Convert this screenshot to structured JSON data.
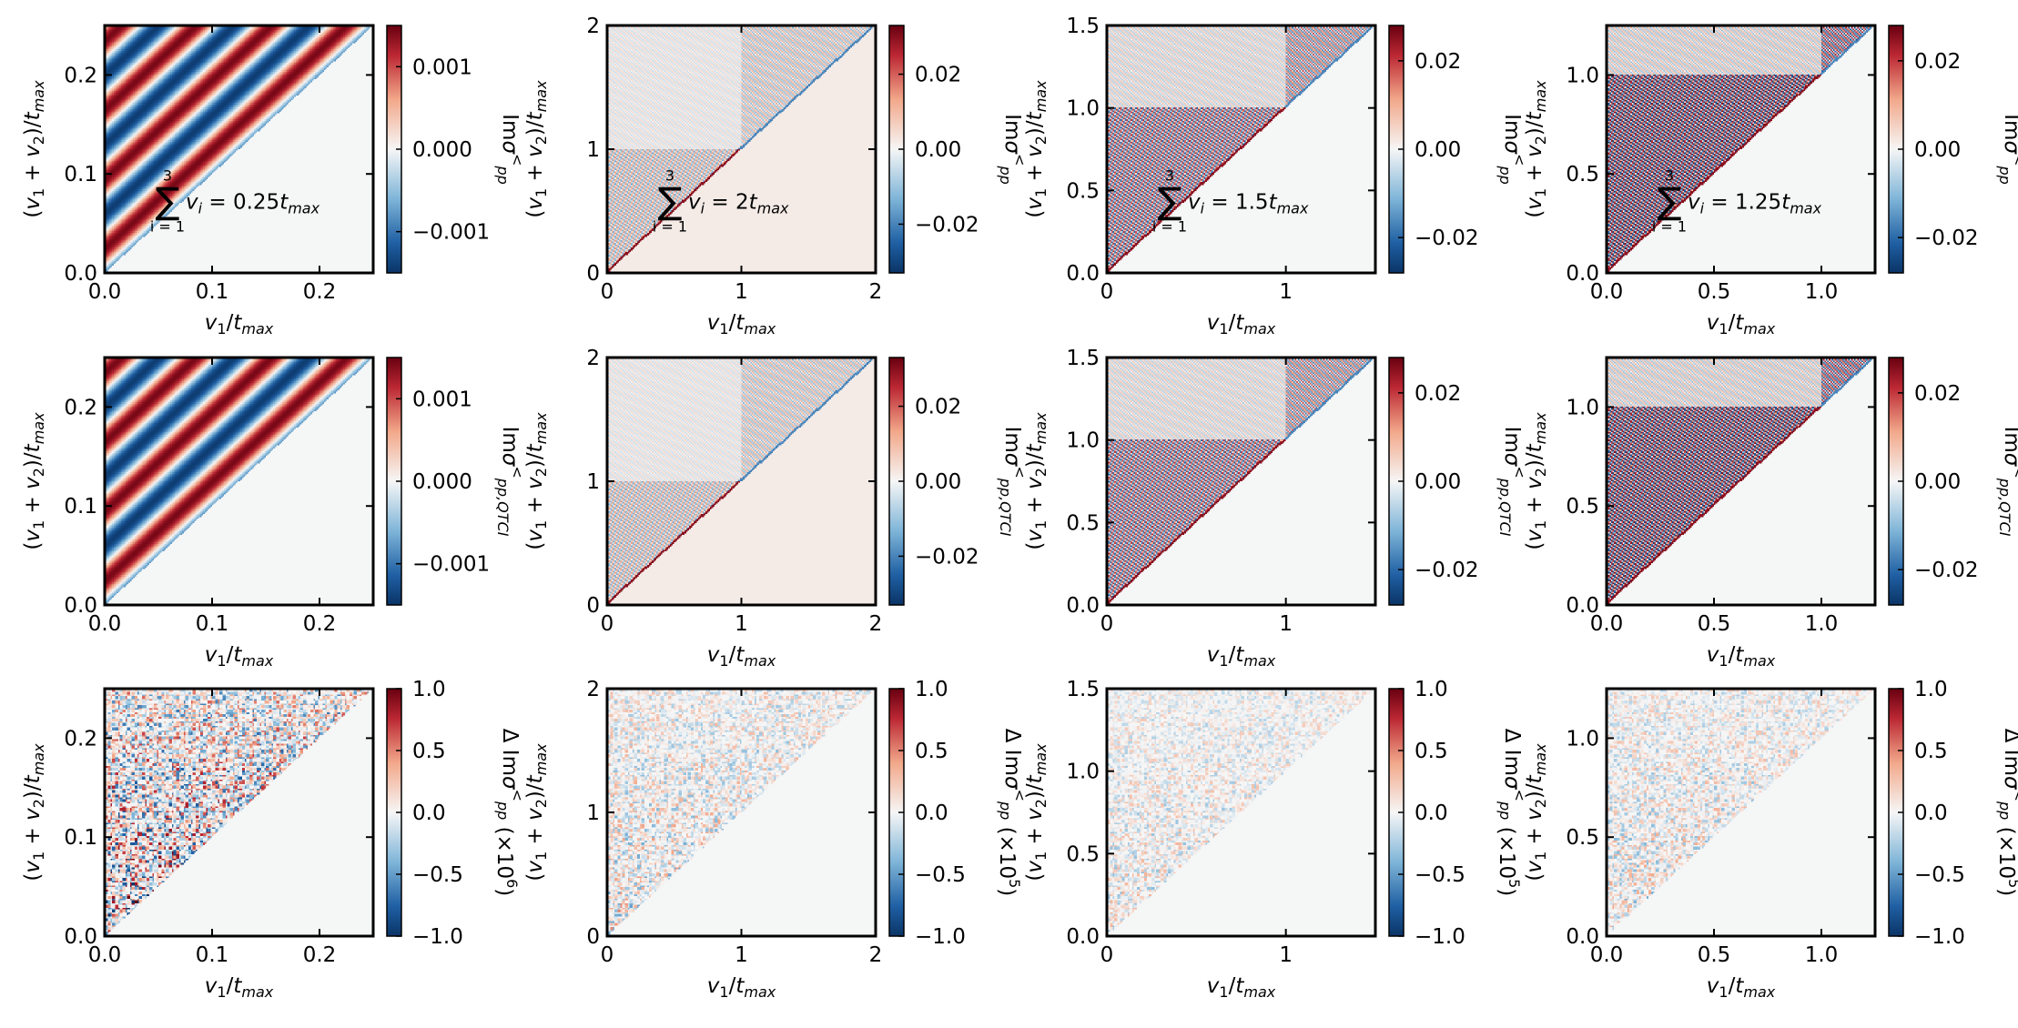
{
  "figure": {
    "layout": "3 rows x 4 columns of heatmaps, each with a vertical red-white-blue colorbar",
    "colormap": {
      "low": "#0a3d78",
      "mid": "#f5f6f6",
      "high": "#6b0010"
    },
    "background_color": "#f5f6f6"
  },
  "chart_data": [
    {
      "type": "heatmap",
      "row": 0,
      "col": 0,
      "xlabel": "v_1/t_max",
      "ylabel": "(v_1 + v_2)/t_max",
      "xlim": [
        0,
        0.25
      ],
      "ylim": [
        0,
        0.25
      ],
      "xticks": [
        0.0,
        0.1,
        0.2
      ],
      "xtick_labels": [
        "0.0",
        "0.1",
        "0.2"
      ],
      "yticks": [
        0.0,
        0.1,
        0.2
      ],
      "ytick_labels": [
        "0.0",
        "0.1",
        "0.2"
      ],
      "colorbar": {
        "label": "Im σ^<_pp",
        "ticks": [
          -0.001,
          0.0,
          0.001
        ],
        "tick_labels": [
          "−0.001",
          "0.000",
          "0.001"
        ],
        "range": [
          -0.0015,
          0.0015
        ]
      },
      "annotation": {
        "sum_top": "3",
        "sum_bottom": "i = 1",
        "text": "v_i = 0.25t_max"
      },
      "pattern": {
        "kind": "stripes",
        "period": 0.07
      },
      "tmax": 0.25
    },
    {
      "type": "heatmap",
      "row": 0,
      "col": 1,
      "xlabel": "v_1/t_max",
      "ylabel": "(v_1 + v_2)/t_max",
      "xlim": [
        0,
        2
      ],
      "ylim": [
        0,
        2
      ],
      "xticks": [
        0,
        1,
        2
      ],
      "xtick_labels": [
        "0",
        "1",
        "2"
      ],
      "yticks": [
        0,
        1,
        2
      ],
      "ytick_labels": [
        "0",
        "1",
        "2"
      ],
      "colorbar": {
        "label": "Im σ^<_pp",
        "ticks": [
          -0.02,
          0.0,
          0.02
        ],
        "tick_labels": [
          "−0.02",
          "0.00",
          "0.02"
        ],
        "range": [
          -0.033,
          0.033
        ]
      },
      "annotation": {
        "sum_top": "3",
        "sum_bottom": "i = 1",
        "text": "v_i = 2t_max"
      },
      "pattern": {
        "kind": "fine",
        "split": 1,
        "bg": "#f4ebe7",
        "intensity": 0.45
      },
      "tmax": 2
    },
    {
      "type": "heatmap",
      "row": 0,
      "col": 2,
      "xlabel": "v_1/t_max",
      "ylabel": "(v_1 + v_2)/t_max",
      "xlim": [
        0,
        1.5
      ],
      "ylim": [
        0,
        1.5
      ],
      "xticks": [
        0,
        1
      ],
      "xtick_labels": [
        "0",
        "1"
      ],
      "yticks": [
        0.0,
        0.5,
        1.0,
        1.5
      ],
      "ytick_labels": [
        "0.0",
        "0.5",
        "1.0",
        "1.5"
      ],
      "colorbar": {
        "label": "Im σ^<_pp",
        "ticks": [
          -0.02,
          0.0,
          0.02
        ],
        "tick_labels": [
          "−0.02",
          "0.00",
          "0.02"
        ],
        "range": [
          -0.028,
          0.028
        ]
      },
      "annotation": {
        "sum_top": "3",
        "sum_bottom": "i = 1",
        "text": "v_i = 1.5t_max"
      },
      "pattern": {
        "kind": "fine",
        "split": 1,
        "bg": "#f5f6f6",
        "intensity": 0.75
      },
      "tmax": 1.5
    },
    {
      "type": "heatmap",
      "row": 0,
      "col": 3,
      "xlabel": "v_1/t_max",
      "ylabel": "(v_1 + v_2)/t_max",
      "xlim": [
        0,
        1.25
      ],
      "ylim": [
        0,
        1.25
      ],
      "xticks": [
        0.0,
        0.5,
        1.0
      ],
      "xtick_labels": [
        "0.0",
        "0.5",
        "1.0"
      ],
      "yticks": [
        0.0,
        0.5,
        1.0
      ],
      "ytick_labels": [
        "0.0",
        "0.5",
        "1.0"
      ],
      "colorbar": {
        "label": "Im σ^<_pp",
        "ticks": [
          -0.02,
          0.0,
          0.02
        ],
        "tick_labels": [
          "−0.02",
          "0.00",
          "0.02"
        ],
        "range": [
          -0.028,
          0.028
        ]
      },
      "annotation": {
        "sum_top": "3",
        "sum_bottom": "i = 1",
        "text": "v_i = 1.25t_max"
      },
      "pattern": {
        "kind": "fine",
        "split": 1,
        "bg": "#f5f6f6",
        "intensity": 0.95
      },
      "tmax": 1.25
    },
    {
      "type": "heatmap",
      "row": 1,
      "col": 0,
      "xlabel": "v_1/t_max",
      "ylabel": "(v_1 + v_2)/t_max",
      "xlim": [
        0,
        0.25
      ],
      "ylim": [
        0,
        0.25
      ],
      "xticks": [
        0.0,
        0.1,
        0.2
      ],
      "xtick_labels": [
        "0.0",
        "0.1",
        "0.2"
      ],
      "yticks": [
        0.0,
        0.1,
        0.2
      ],
      "ytick_labels": [
        "0.0",
        "0.1",
        "0.2"
      ],
      "colorbar": {
        "label": "Im σ^<_pp,QTCI",
        "ticks": [
          -0.001,
          0.0,
          0.001
        ],
        "tick_labels": [
          "−0.001",
          "0.000",
          "0.001"
        ],
        "range": [
          -0.0015,
          0.0015
        ]
      },
      "pattern": {
        "kind": "stripes",
        "period": 0.07
      },
      "tmax": 0.25
    },
    {
      "type": "heatmap",
      "row": 1,
      "col": 1,
      "xlabel": "v_1/t_max",
      "ylabel": "(v_1 + v_2)/t_max",
      "xlim": [
        0,
        2
      ],
      "ylim": [
        0,
        2
      ],
      "xticks": [
        0,
        1,
        2
      ],
      "xtick_labels": [
        "0",
        "1",
        "2"
      ],
      "yticks": [
        0,
        1,
        2
      ],
      "ytick_labels": [
        "0",
        "1",
        "2"
      ],
      "colorbar": {
        "label": "Im σ^<_pp,QTCI",
        "ticks": [
          -0.02,
          0.0,
          0.02
        ],
        "tick_labels": [
          "−0.02",
          "0.00",
          "0.02"
        ],
        "range": [
          -0.033,
          0.033
        ]
      },
      "pattern": {
        "kind": "fine",
        "split": 1,
        "bg": "#f4ebe7",
        "intensity": 0.45
      },
      "tmax": 2
    },
    {
      "type": "heatmap",
      "row": 1,
      "col": 2,
      "xlabel": "v_1/t_max",
      "ylabel": "(v_1 + v_2)/t_max",
      "xlim": [
        0,
        1.5
      ],
      "ylim": [
        0,
        1.5
      ],
      "xticks": [
        0,
        1
      ],
      "xtick_labels": [
        "0",
        "1"
      ],
      "yticks": [
        0.0,
        0.5,
        1.0,
        1.5
      ],
      "ytick_labels": [
        "0.0",
        "0.5",
        "1.0",
        "1.5"
      ],
      "colorbar": {
        "label": "Im σ^<_pp,QTCI",
        "ticks": [
          -0.02,
          0.0,
          0.02
        ],
        "tick_labels": [
          "−0.02",
          "0.00",
          "0.02"
        ],
        "range": [
          -0.028,
          0.028
        ]
      },
      "pattern": {
        "kind": "fine",
        "split": 1,
        "bg": "#f5f6f6",
        "intensity": 0.75
      },
      "tmax": 1.5
    },
    {
      "type": "heatmap",
      "row": 1,
      "col": 3,
      "xlabel": "v_1/t_max",
      "ylabel": "(v_1 + v_2)/t_max",
      "xlim": [
        0,
        1.25
      ],
      "ylim": [
        0,
        1.25
      ],
      "xticks": [
        0.0,
        0.5,
        1.0
      ],
      "xtick_labels": [
        "0.0",
        "0.5",
        "1.0"
      ],
      "yticks": [
        0.0,
        0.5,
        1.0
      ],
      "ytick_labels": [
        "0.0",
        "0.5",
        "1.0"
      ],
      "colorbar": {
        "label": "Im σ^<_pp,QTCI",
        "ticks": [
          -0.02,
          0.0,
          0.02
        ],
        "tick_labels": [
          "−0.02",
          "0.00",
          "0.02"
        ],
        "range": [
          -0.028,
          0.028
        ]
      },
      "pattern": {
        "kind": "fine",
        "split": 1,
        "bg": "#f5f6f6",
        "intensity": 0.95
      },
      "tmax": 1.25
    },
    {
      "type": "heatmap",
      "row": 2,
      "col": 0,
      "xlabel": "v_1/t_max",
      "ylabel": "(v_1 + v_2)/t_max",
      "xlim": [
        0,
        0.25
      ],
      "ylim": [
        0,
        0.25
      ],
      "xticks": [
        0.0,
        0.1,
        0.2
      ],
      "xtick_labels": [
        "0.0",
        "0.1",
        "0.2"
      ],
      "yticks": [
        0.0,
        0.1,
        0.2
      ],
      "ytick_labels": [
        "0.0",
        "0.1",
        "0.2"
      ],
      "colorbar": {
        "label": "Δ Im σ^<_pp (×10^6)",
        "ticks": [
          -1.0,
          -0.5,
          0.0,
          0.5,
          1.0
        ],
        "tick_labels": [
          "−1.0",
          "−0.5",
          "0.0",
          "0.5",
          "1.0"
        ],
        "range": [
          -1.0,
          1.0
        ]
      },
      "pattern": {
        "kind": "noise",
        "intensity": 0.85
      },
      "tmax": 0.25
    },
    {
      "type": "heatmap",
      "row": 2,
      "col": 1,
      "xlabel": "v_1/t_max",
      "ylabel": "(v_1 + v_2)/t_max",
      "xlim": [
        0,
        2
      ],
      "ylim": [
        0,
        2
      ],
      "xticks": [
        0,
        1,
        2
      ],
      "xtick_labels": [
        "0",
        "1",
        "2"
      ],
      "yticks": [
        0,
        1,
        2
      ],
      "ytick_labels": [
        "0",
        "1",
        "2"
      ],
      "colorbar": {
        "label": "Δ Im σ^<_pp (×10^5)",
        "ticks": [
          -1.0,
          -0.5,
          0.0,
          0.5,
          1.0
        ],
        "tick_labels": [
          "−1.0",
          "−0.5",
          "0.0",
          "0.5",
          "1.0"
        ],
        "range": [
          -1.0,
          1.0
        ]
      },
      "pattern": {
        "kind": "noise",
        "intensity": 0.4
      },
      "tmax": 2
    },
    {
      "type": "heatmap",
      "row": 2,
      "col": 2,
      "xlabel": "v_1/t_max",
      "ylabel": "(v_1 + v_2)/t_max",
      "xlim": [
        0,
        1.5
      ],
      "ylim": [
        0,
        1.5
      ],
      "xticks": [
        0,
        1
      ],
      "xtick_labels": [
        "0",
        "1"
      ],
      "yticks": [
        0.0,
        0.5,
        1.0,
        1.5
      ],
      "ytick_labels": [
        "0.0",
        "0.5",
        "1.0",
        "1.5"
      ],
      "colorbar": {
        "label": "Δ Im σ^<_pp (×10^5)",
        "ticks": [
          -1.0,
          -0.5,
          0.0,
          0.5,
          1.0
        ],
        "tick_labels": [
          "−1.0",
          "−0.5",
          "0.0",
          "0.5",
          "1.0"
        ],
        "range": [
          -1.0,
          1.0
        ]
      },
      "pattern": {
        "kind": "noise",
        "intensity": 0.3
      },
      "tmax": 1.5
    },
    {
      "type": "heatmap",
      "row": 2,
      "col": 3,
      "xlabel": "v_1/t_max",
      "ylabel": "(v_1 + v_2)/t_max",
      "xlim": [
        0,
        1.25
      ],
      "ylim": [
        0,
        1.25
      ],
      "xticks": [
        0.0,
        0.5,
        1.0
      ],
      "xtick_labels": [
        "0.0",
        "0.5",
        "1.0"
      ],
      "yticks": [
        0.0,
        0.5,
        1.0
      ],
      "ytick_labels": [
        "0.0",
        "0.5",
        "1.0"
      ],
      "colorbar": {
        "label": "Δ Im σ^<_pp (×10^5)",
        "ticks": [
          -1.0,
          -0.5,
          0.0,
          0.5,
          1.0
        ],
        "tick_labels": [
          "−1.0",
          "−0.5",
          "0.0",
          "0.5",
          "1.0"
        ],
        "range": [
          -1.0,
          1.0
        ]
      },
      "pattern": {
        "kind": "noise",
        "intensity": 0.35
      },
      "tmax": 1.25
    }
  ]
}
